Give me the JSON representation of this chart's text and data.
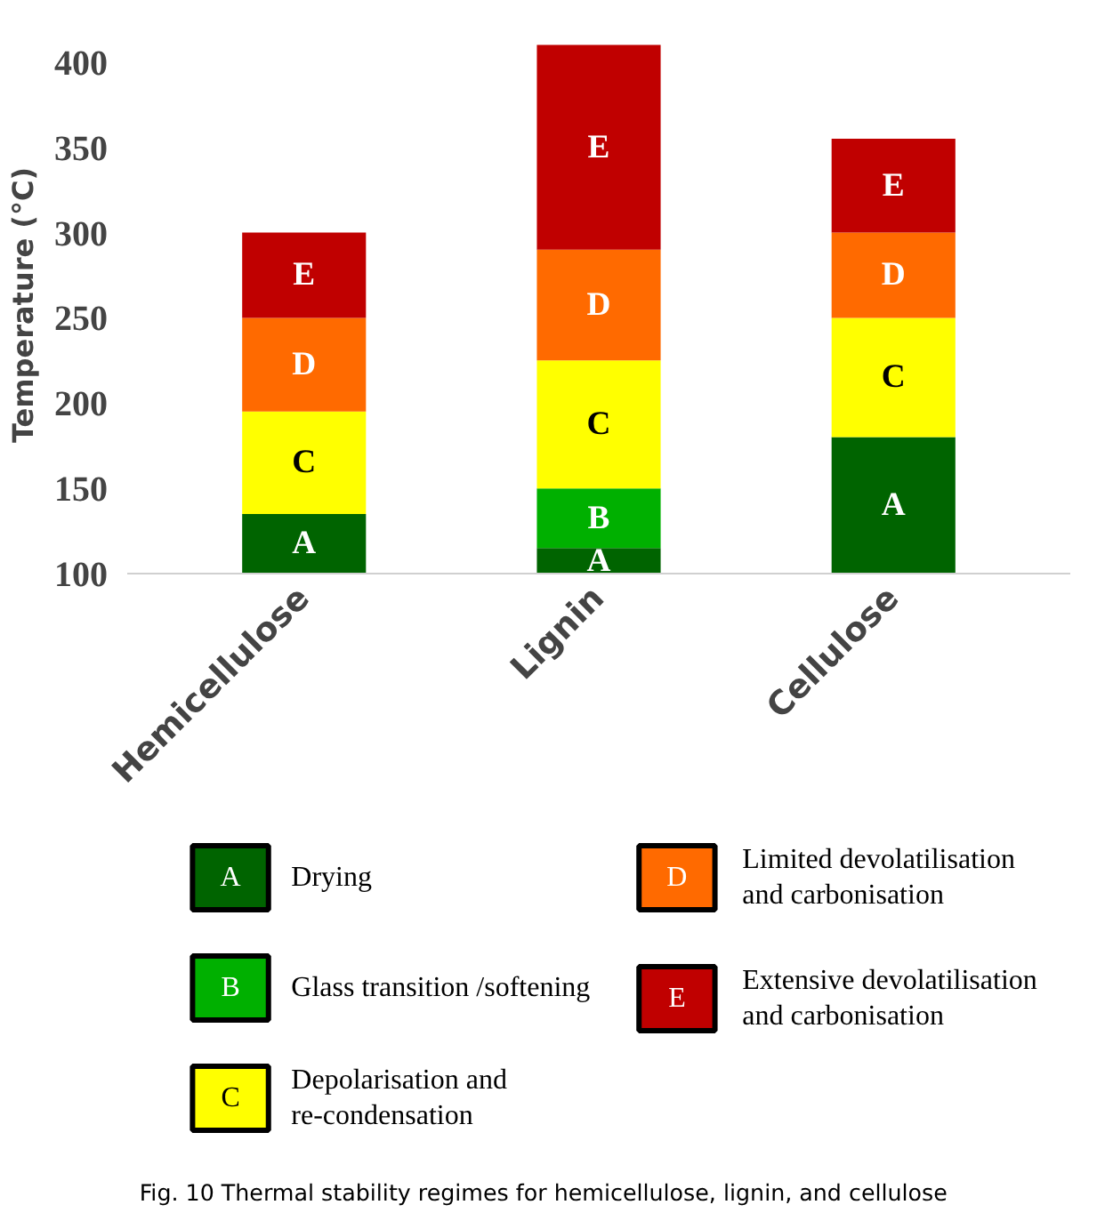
{
  "chart_data": {
    "type": "bar",
    "ylabel": "Temperature (°C)",
    "categories": [
      "Hemicellulose",
      "Lignin",
      "Cellulose"
    ],
    "ylim": [
      100,
      415
    ],
    "yticks": [
      100,
      150,
      200,
      250,
      300,
      350,
      400
    ],
    "grid": false,
    "legend": "bottom",
    "series": [
      {
        "name": "Drying",
        "color": "#006400",
        "base": [
          100,
          100,
          100
        ],
        "values": [
          35,
          15,
          80
        ]
      },
      {
        "name": "Glass transition /softening",
        "color": "#00b000",
        "base": [
          null,
          115,
          null
        ],
        "values": [
          null,
          35,
          null
        ]
      },
      {
        "name": "Depolarisation and re-condensation",
        "color": "#ffff00",
        "base": [
          135,
          150,
          180
        ],
        "values": [
          60,
          75,
          70
        ]
      },
      {
        "name": "Limited devolatilisation and carbonisation",
        "color": "#ff6a00",
        "base": [
          195,
          225,
          250
        ],
        "values": [
          55,
          65,
          50
        ]
      },
      {
        "name": "Extensive devolatilisation and carbonisation",
        "color": "#c00000",
        "base": [
          250,
          290,
          300
        ],
        "values": [
          50,
          120,
          55
        ]
      }
    ],
    "annotations": [
      "A",
      "C",
      "D",
      "E",
      "A",
      "B",
      "C",
      "D",
      "E",
      "A",
      "C",
      "D",
      "E",
      "A",
      "B",
      "C",
      "D",
      "E",
      "Fig. 10 Thermal stability regimes for hemicellulose, lignin, and cellulose"
    ]
  }
}
